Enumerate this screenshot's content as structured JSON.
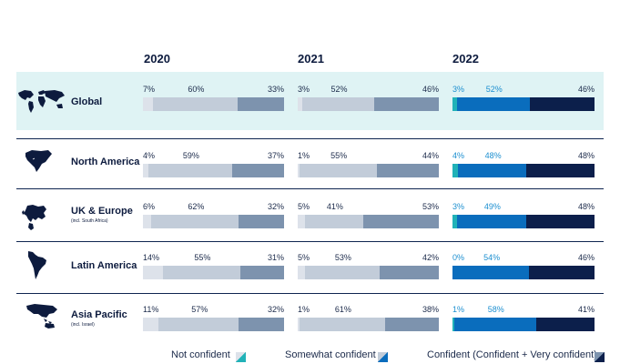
{
  "years": [
    "2020",
    "2021",
    "2022"
  ],
  "colors": {
    "global_bg": "#dff3f4",
    "divider": "#0f2550",
    "map": "#0d1b3e",
    "pale": "#dde2ea",
    "grey_light": "#c2ccd9",
    "grey_mid": "#7d93ae",
    "teal": "#21b2b8",
    "blue": "#0a6dbd",
    "navy": "#0c1f4b",
    "label_dark": "#1b2a4a",
    "label_blue": "#1c8fd0"
  },
  "chart_data": {
    "type": "bar",
    "stacked": true,
    "normalized": true,
    "categories": [
      "Global",
      "North America",
      "UK & Europe",
      "Latin America",
      "Asia Pacific"
    ],
    "category_notes": [
      "",
      "",
      "(incl. South Africa)",
      "",
      "(incl. Israel)"
    ],
    "years": [
      "2020",
      "2021",
      "2022"
    ],
    "series_names": [
      "Not confident",
      "Somewhat confident",
      "Confident (Confident + Very confident)"
    ],
    "values": {
      "Global": {
        "2020": [
          7,
          60,
          33
        ],
        "2021": [
          3,
          52,
          46
        ],
        "2022": [
          3,
          52,
          46
        ]
      },
      "North America": {
        "2020": [
          4,
          59,
          37
        ],
        "2021": [
          1,
          55,
          44
        ],
        "2022": [
          4,
          48,
          48
        ]
      },
      "UK & Europe": {
        "2020": [
          6,
          62,
          32
        ],
        "2021": [
          5,
          41,
          53
        ],
        "2022": [
          3,
          49,
          48
        ]
      },
      "Latin America": {
        "2020": [
          14,
          55,
          31
        ],
        "2021": [
          5,
          53,
          42
        ],
        "2022": [
          0,
          54,
          46
        ]
      },
      "Asia Pacific": {
        "2020": [
          11,
          57,
          32
        ],
        "2021": [
          1,
          61,
          38
        ],
        "2022": [
          1,
          58,
          41
        ]
      }
    },
    "xlim": [
      0,
      100
    ],
    "legend_position": "bottom"
  },
  "legend": {
    "not_confident": "Not confident",
    "somewhat_confident": "Somewhat confident",
    "confident": "Confident (Confident + Very confident)"
  },
  "icons": [
    "world-map-icon",
    "north-america-map-icon",
    "europe-map-icon",
    "latin-america-map-icon",
    "asia-pacific-map-icon"
  ]
}
